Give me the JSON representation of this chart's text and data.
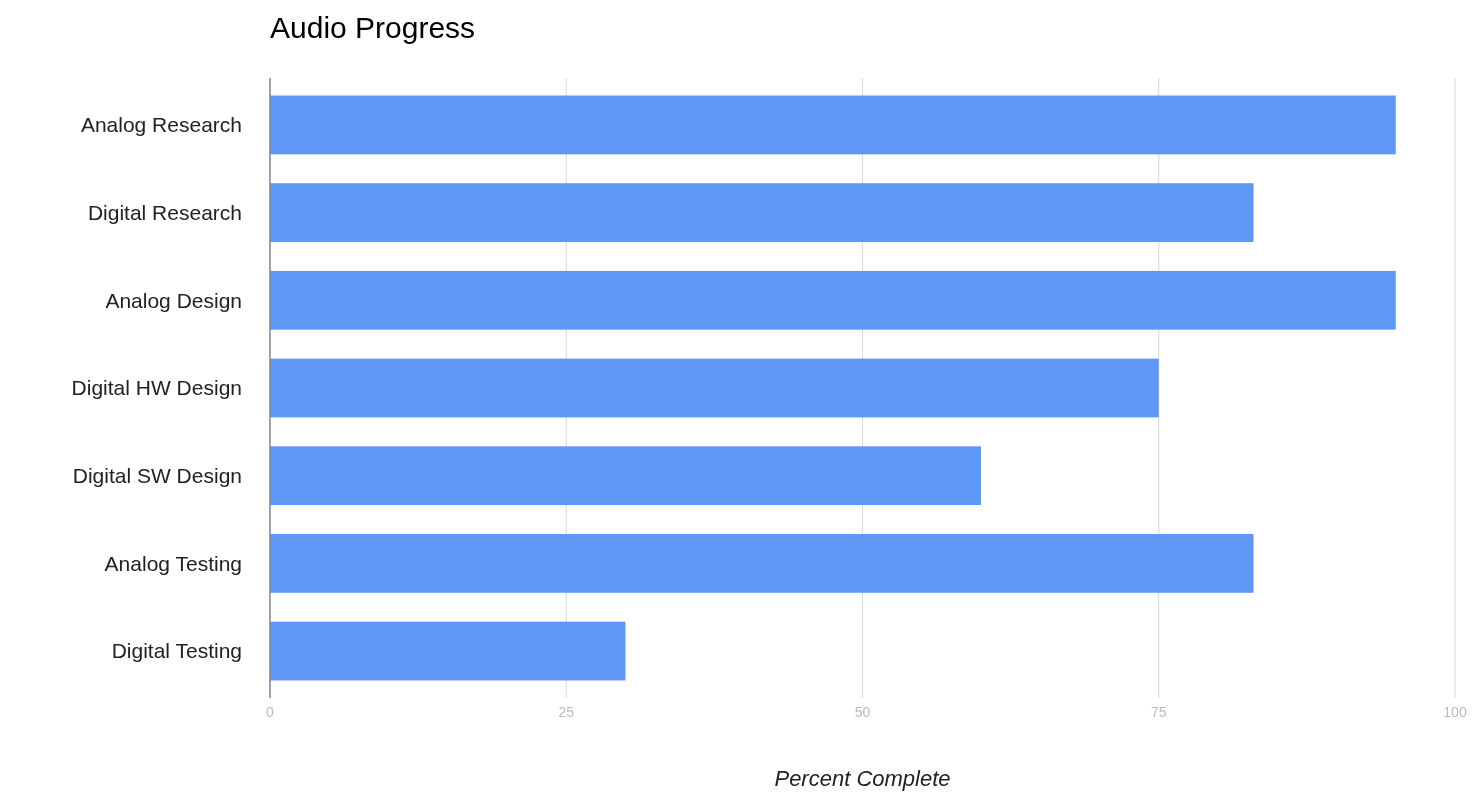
{
  "chart_data": {
    "type": "bar",
    "title": "Audio Progress",
    "xlabel": "Percent Complete",
    "orientation": "horizontal",
    "categories": [
      "Analog Research",
      "Digital Research",
      "Analog Design",
      "Digital HW Design",
      "Digital SW Design",
      "Analog Testing",
      "Digital Testing"
    ],
    "values": [
      95,
      83,
      95,
      75,
      60,
      83,
      30
    ],
    "color": "#5e97f6",
    "xlim": [
      0,
      100
    ],
    "xticks": [
      0,
      25,
      50,
      75,
      100
    ],
    "grid": "x"
  }
}
